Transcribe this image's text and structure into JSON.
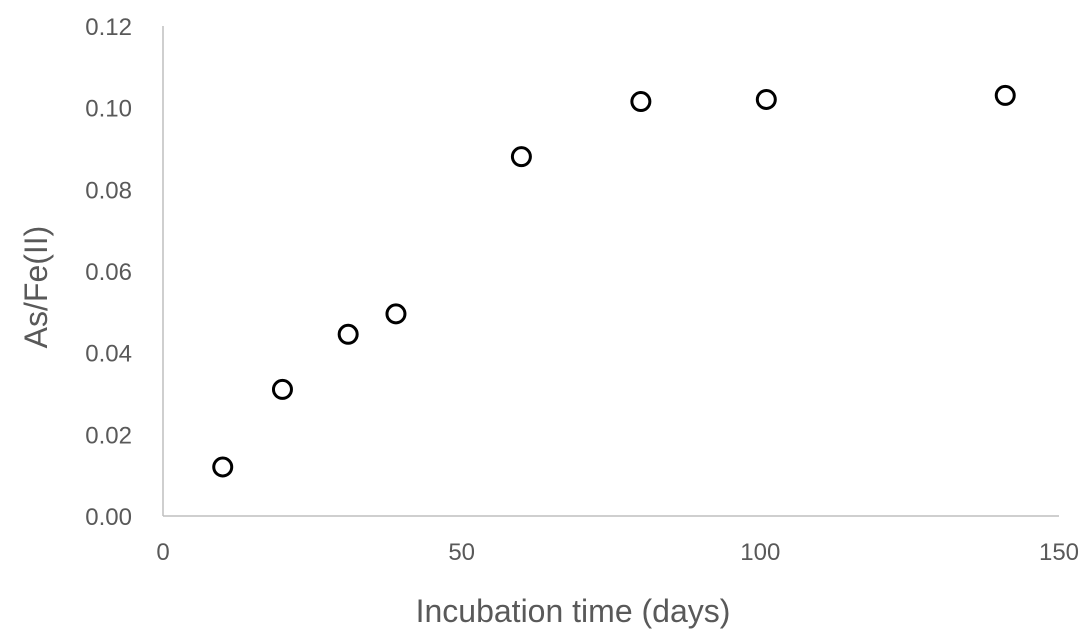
{
  "chart_data": {
    "type": "scatter",
    "title": "",
    "xlabel": "Incubation time (days)",
    "ylabel": "As/Fe(II)",
    "xlim": [
      0,
      150
    ],
    "ylim": [
      0,
      0.12
    ],
    "xticks": [
      {
        "value": 0,
        "label": "0"
      },
      {
        "value": 50,
        "label": "50"
      },
      {
        "value": 100,
        "label": "100"
      },
      {
        "value": 150,
        "label": "150"
      }
    ],
    "yticks": [
      {
        "value": 0,
        "label": "0.00"
      },
      {
        "value": 0.02,
        "label": "0.02"
      },
      {
        "value": 0.04,
        "label": "0.04"
      },
      {
        "value": 0.06,
        "label": "0.06"
      },
      {
        "value": 0.08,
        "label": "0.08"
      },
      {
        "value": 0.1,
        "label": "0.10"
      },
      {
        "value": 0.12,
        "label": "0.12"
      }
    ],
    "grid": false,
    "legend": "none",
    "marker": {
      "shape": "circle",
      "fill": "#ffffff",
      "edge_color": "#000000"
    },
    "series": [
      {
        "points": [
          {
            "x": 10,
            "y": 0.012
          },
          {
            "x": 20,
            "y": 0.031
          },
          {
            "x": 31,
            "y": 0.0445
          },
          {
            "x": 39,
            "y": 0.0495
          },
          {
            "x": 60,
            "y": 0.088
          },
          {
            "x": 80,
            "y": 0.1015
          },
          {
            "x": 101,
            "y": 0.102
          },
          {
            "x": 141,
            "y": 0.103
          }
        ]
      }
    ]
  },
  "colors": {
    "axis": "#bfbfbf",
    "text": "#595959",
    "marker_edge": "#000000",
    "marker_fill": "#ffffff"
  }
}
